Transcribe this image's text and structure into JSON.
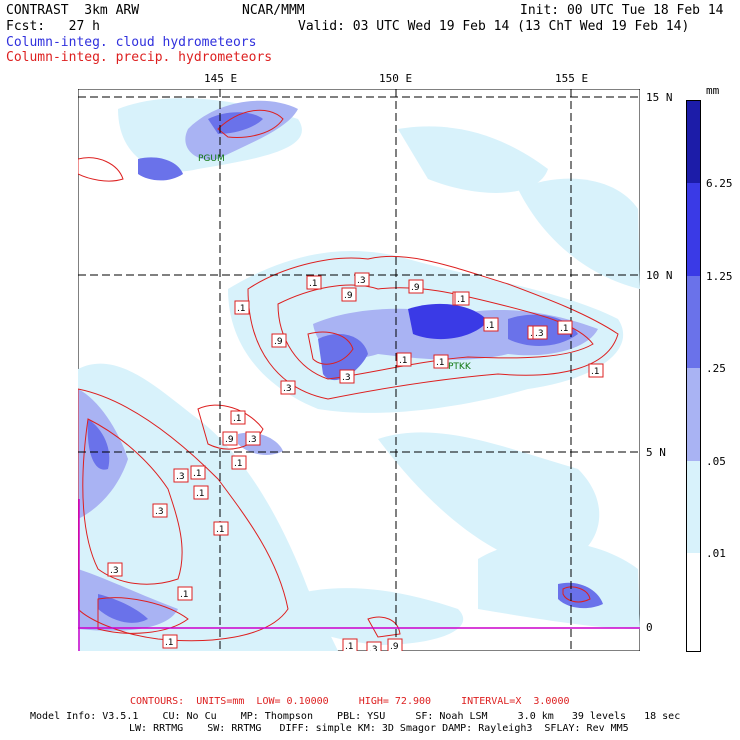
{
  "header": {
    "line1_left": "CONTRAST  3km ARW",
    "line1_mid": "NCAR/MMM",
    "line1_right": "Init: 00 UTC Tue 18 Feb 14",
    "line2_left": "Fcst:   27 h",
    "line2_right": "Valid: 03 UTC Wed 19 Feb 14 (13 ChT Wed 19 Feb 14)",
    "legend_cloud": "Column-integ. cloud hydrometeors",
    "legend_precip": "Column-integ. precip. hydrometeors"
  },
  "map": {
    "lon_labels": [
      "145 E",
      "150 E",
      "155 E"
    ],
    "lat_labels": [
      "15 N",
      "10 N",
      "5 N",
      "0"
    ],
    "stations": [
      "PGUM",
      "PTKK"
    ],
    "contour_labels": [
      ".1",
      ".3",
      ".9",
      ".9",
      ".1",
      ".1",
      ".9",
      ".3",
      ".3",
      ".1",
      ".1",
      ".1",
      ".3",
      ".1",
      ".1",
      ".1",
      ".1",
      ".1",
      ".1",
      ".9",
      ".3",
      ".1",
      ".3",
      ".1",
      ".3",
      ".1",
      ".3",
      ".3",
      ".9",
      ".1",
      ".3",
      ".1"
    ]
  },
  "colorbar": {
    "unit": "mm",
    "labels": [
      "6.25",
      "1.25",
      ".25",
      ".05",
      ".01"
    ],
    "colors": [
      "#1c1ca8",
      "#3a3ae6",
      "#6a72ea",
      "#a9b3f3",
      "#d8f2fb",
      "#ffffff"
    ]
  },
  "footer": {
    "contours": "CONTOURS:  UNITS=mm  LOW= 0.10000     HIGH= 72.900     INTERVAL=X  3.0000",
    "model_info_1": "Model Info: V3.5.1    CU: No Cu    MP: Thompson    PBL: YSU     SF: Noah LSM     3.0 km   39 levels   18 sec",
    "model_info_2": "LW: RRTMG    SW: RRTMG   DIFF: simple KM: 3D Smagor DAMP: Rayleigh3  SFLAY: Rev MM5"
  }
}
